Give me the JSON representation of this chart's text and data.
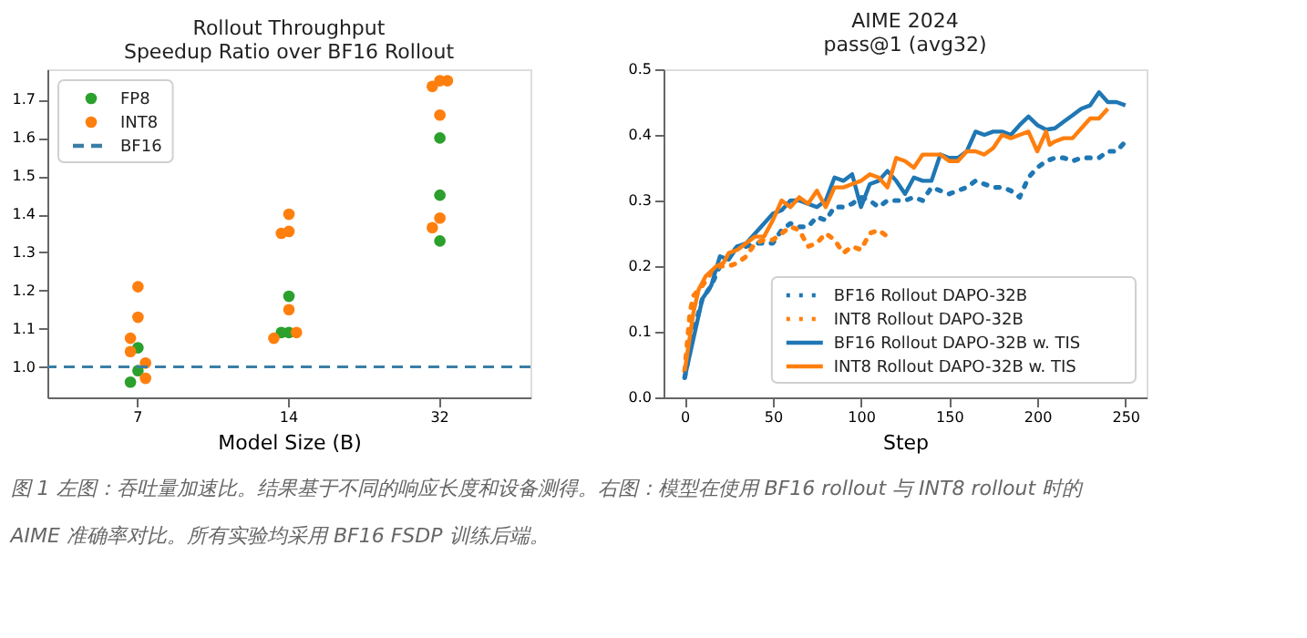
{
  "chart_data": [
    {
      "type": "scatter",
      "title": "Rollout Throughput",
      "subtitle": "Speedup Ratio over BF16 Rollout",
      "xlabel": "Model Size (B)",
      "categories": [
        "7",
        "14",
        "32"
      ],
      "ylim": [
        0.92,
        1.78
      ],
      "yticks": [
        {
          "value": 1,
          "label": "1.0"
        },
        1.1,
        1.2,
        1.3,
        1.4,
        1.5,
        1.6,
        1.7
      ],
      "grid": false,
      "legend": "top left",
      "marker": "circle",
      "series": [
        {
          "name": "FP8",
          "color": "#2ca02c",
          "x": [
            "7",
            "7",
            "7",
            "14",
            "14",
            "14",
            "32",
            "32",
            "32"
          ],
          "values": [
            1.05,
            0.99,
            0.96,
            1.185,
            1.09,
            1.09,
            1.6,
            1.45,
            1.33
          ]
        },
        {
          "name": "INT8",
          "color": "#ff7f0e",
          "x": [
            "7",
            "7",
            "7",
            "7",
            "7",
            "7",
            "14",
            "14",
            "14",
            "14",
            "14",
            "14",
            "32",
            "32",
            "32",
            "32",
            "32",
            "32"
          ],
          "values": [
            1.21,
            1.13,
            1.075,
            1.04,
            1.01,
            0.97,
            1.4,
            1.355,
            1.35,
            1.15,
            1.09,
            1.075,
            1.75,
            1.735,
            1.75,
            1.66,
            1.39,
            1.365
          ]
        }
      ],
      "ref_lines": [
        {
          "axis": "y",
          "value": 1.0,
          "label": "BF16",
          "color": "#3b7ea5",
          "line_style": "dashed"
        }
      ]
    },
    {
      "type": "line",
      "title": "AIME 2024",
      "subtitle": "pass@1 (avg32)",
      "xlabel": "Step",
      "xlim": [
        -12,
        262
      ],
      "ylim": [
        0,
        0.5
      ],
      "xticks": [
        0,
        50,
        100,
        150,
        200,
        250
      ],
      "yticks": [
        {
          "value": 0,
          "label": "0.0"
        },
        0.1,
        0.2,
        0.3,
        0.4,
        0.5
      ],
      "grid": false,
      "legend": "bottom right",
      "marker": "none",
      "series": [
        {
          "name": "BF16 Rollout DAPO-32B",
          "color": "#1f77b4",
          "line_style": "dotted",
          "x": [
            0,
            5,
            10,
            15,
            20,
            25,
            30,
            35,
            40,
            45,
            50,
            55,
            60,
            65,
            70,
            75,
            80,
            85,
            90,
            95,
            100,
            105,
            110,
            115,
            120,
            125,
            130,
            135,
            140,
            145,
            150,
            155,
            160,
            165,
            170,
            175,
            180,
            185,
            190,
            195,
            200,
            205,
            210,
            215,
            220,
            225,
            230,
            235,
            240,
            245,
            250
          ],
          "values": [
            0.03,
            0.1,
            0.15,
            0.17,
            0.2,
            0.215,
            0.23,
            0.23,
            0.235,
            0.235,
            0.235,
            0.255,
            0.265,
            0.26,
            0.26,
            0.275,
            0.27,
            0.29,
            0.29,
            0.295,
            0.305,
            0.3,
            0.29,
            0.3,
            0.3,
            0.3,
            0.305,
            0.3,
            0.32,
            0.315,
            0.31,
            0.315,
            0.32,
            0.33,
            0.325,
            0.32,
            0.32,
            0.315,
            0.305,
            0.335,
            0.35,
            0.36,
            0.365,
            0.365,
            0.36,
            0.365,
            0.365,
            0.365,
            0.375,
            0.375,
            0.39
          ]
        },
        {
          "name": "INT8 Rollout DAPO-32B",
          "color": "#ff7f0e",
          "line_style": "dotted",
          "x": [
            0,
            3,
            5,
            10,
            15,
            20,
            25,
            30,
            35,
            40,
            45,
            50,
            55,
            60,
            65,
            70,
            75,
            80,
            85,
            90,
            95,
            100,
            105,
            110,
            115
          ],
          "values": [
            0.04,
            0.13,
            0.155,
            0.17,
            0.19,
            0.2,
            0.2,
            0.205,
            0.215,
            0.235,
            0.24,
            0.24,
            0.25,
            0.26,
            0.255,
            0.23,
            0.235,
            0.25,
            0.24,
            0.22,
            0.23,
            0.225,
            0.25,
            0.255,
            0.245
          ]
        },
        {
          "name": "BF16 Rollout DAPO-32B w. TIS",
          "color": "#1f77b4",
          "line_style": "solid",
          "x": [
            0,
            5,
            10,
            15,
            20,
            25,
            30,
            35,
            40,
            45,
            50,
            55,
            60,
            65,
            70,
            75,
            80,
            85,
            90,
            95,
            100,
            105,
            110,
            115,
            120,
            125,
            130,
            135,
            140,
            145,
            150,
            155,
            160,
            165,
            170,
            175,
            180,
            185,
            190,
            195,
            200,
            205,
            210,
            215,
            220,
            225,
            230,
            235,
            240,
            245,
            250
          ],
          "values": [
            0.03,
            0.09,
            0.15,
            0.17,
            0.215,
            0.21,
            0.23,
            0.235,
            0.25,
            0.265,
            0.28,
            0.285,
            0.3,
            0.3,
            0.295,
            0.29,
            0.3,
            0.335,
            0.33,
            0.34,
            0.29,
            0.325,
            0.33,
            0.345,
            0.33,
            0.31,
            0.335,
            0.33,
            0.33,
            0.37,
            0.365,
            0.365,
            0.375,
            0.405,
            0.4,
            0.405,
            0.405,
            0.4,
            0.415,
            0.428,
            0.415,
            0.408,
            0.41,
            0.42,
            0.43,
            0.44,
            0.445,
            0.465,
            0.45,
            0.45,
            0.445
          ]
        },
        {
          "name": "INT8 Rollout DAPO-32B w. TIS",
          "color": "#ff7f0e",
          "line_style": "solid",
          "x": [
            0,
            5,
            8,
            12,
            18,
            22,
            25,
            30,
            35,
            40,
            45,
            50,
            55,
            60,
            65,
            70,
            75,
            80,
            85,
            90,
            95,
            100,
            105,
            110,
            115,
            120,
            125,
            130,
            135,
            140,
            145,
            150,
            155,
            160,
            165,
            170,
            175,
            180,
            185,
            190,
            195,
            200,
            205,
            207,
            210,
            215,
            220,
            225,
            230,
            235,
            240
          ],
          "values": [
            0.04,
            0.13,
            0.165,
            0.185,
            0.2,
            0.205,
            0.22,
            0.225,
            0.235,
            0.245,
            0.245,
            0.27,
            0.3,
            0.29,
            0.305,
            0.295,
            0.315,
            0.29,
            0.32,
            0.32,
            0.325,
            0.33,
            0.34,
            0.335,
            0.32,
            0.365,
            0.36,
            0.35,
            0.37,
            0.37,
            0.37,
            0.36,
            0.36,
            0.375,
            0.375,
            0.37,
            0.38,
            0.4,
            0.395,
            0.4,
            0.405,
            0.375,
            0.405,
            0.385,
            0.39,
            0.395,
            0.395,
            0.41,
            0.425,
            0.425,
            0.44
          ]
        }
      ],
      "annotations": [
        "图 1  左图：吞吐量加速比。结果基于不同的响应长度和设备测得。右图：模型在使用 BF16 rollout 与 INT8 rollout 时的 AIME 准确率对比。所有实验均采用 BF16 FSDP 训练后端。"
      ]
    }
  ]
}
